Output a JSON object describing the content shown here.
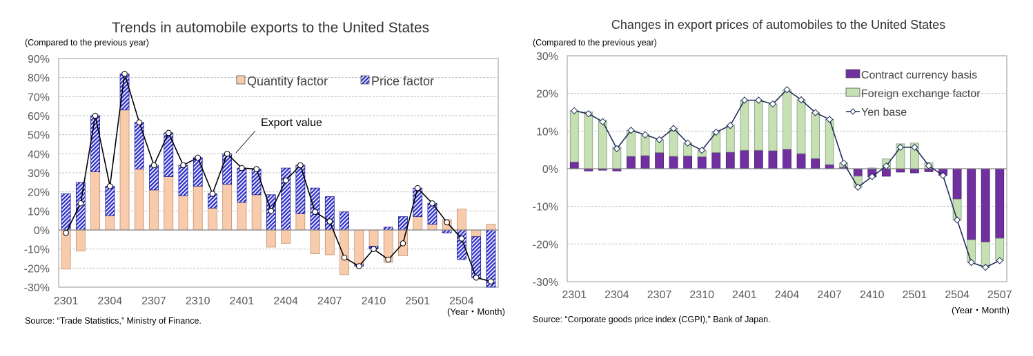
{
  "chart_data": [
    {
      "type": "bar",
      "stacked": true,
      "title": "Trends in automobile exports to the United States",
      "ylabel": "(Compared to the previous year)",
      "xlabel": "(Year・Month)",
      "source": "Source: “Trade Statistics,” Ministry of Finance.",
      "ylim": [
        -30,
        90
      ],
      "yticks": [
        "90%",
        "80%",
        "70%",
        "60%",
        "50%",
        "40%",
        "30%",
        "20%",
        "10%",
        "0%",
        "-10%",
        "-20%",
        "-30%"
      ],
      "xtick_labels": [
        "2301",
        "2304",
        "2307",
        "2310",
        "2401",
        "2404",
        "2407",
        "2410",
        "2501",
        "2504"
      ],
      "grid": true,
      "legend_placement": "top-right",
      "categories": [
        "2301",
        "2302",
        "2303",
        "2304",
        "2305",
        "2306",
        "2307",
        "2308",
        "2309",
        "2310",
        "2311",
        "2312",
        "2401",
        "2402",
        "2403",
        "2404",
        "2405",
        "2406",
        "2407",
        "2408",
        "2409",
        "2410",
        "2411",
        "2412",
        "2501",
        "2502",
        "2503",
        "2504",
        "2505",
        "2506"
      ],
      "series": [
        {
          "name": "Quantity factor",
          "kind": "bar",
          "color": "#f8cbad",
          "values": [
            -20.5,
            -11,
            30.5,
            7.5,
            63,
            32,
            21,
            28,
            18,
            23,
            11.5,
            24,
            14.5,
            18.5,
            -9,
            -7,
            8.5,
            -12.5,
            -13,
            -23.5,
            -18,
            -8.5,
            -17,
            -13.5,
            7,
            3,
            5.5,
            11,
            -3.5,
            3
          ]
        },
        {
          "name": "Price factor",
          "kind": "bar",
          "color": "#3333cc",
          "pattern": "hatched",
          "values": [
            19,
            25,
            29.5,
            15.5,
            19,
            24.5,
            13,
            23,
            16,
            15,
            7.5,
            16,
            18,
            13.5,
            18.5,
            32.5,
            25.5,
            22,
            17.5,
            9.5,
            -1,
            -1.5,
            1.5,
            7,
            15,
            11,
            -1.5,
            -15.5,
            -21.5,
            -30
          ]
        },
        {
          "name": "Export value",
          "kind": "line",
          "color": "#000000",
          "values": [
            -1.5,
            14,
            60,
            23,
            82,
            56.5,
            34,
            51,
            34,
            38,
            19,
            40,
            32.5,
            32,
            10,
            26,
            34,
            9.5,
            4.5,
            -14.5,
            -19,
            -10,
            -15.5,
            -7,
            22,
            14,
            4,
            -4.5,
            -25,
            -27
          ]
        }
      ]
    },
    {
      "type": "bar",
      "stacked": true,
      "title": "Changes in export prices of automobiles to the United States",
      "ylabel": "(Compared to the previous year)",
      "xlabel": "(Year・Month)",
      "source": "Source: “Corporate goods price index (CGPI),” Bank of Japan.",
      "ylim": [
        -30,
        30
      ],
      "yticks": [
        "30%",
        "20%",
        "10%",
        "0%",
        "-10%",
        "-20%",
        "-30%"
      ],
      "xtick_labels": [
        "2301",
        "2304",
        "2307",
        "2310",
        "2401",
        "2404",
        "2407",
        "2410",
        "2501",
        "2504",
        "2507"
      ],
      "grid": true,
      "legend_placement": "top-right",
      "categories": [
        "2301",
        "2302",
        "2303",
        "2304",
        "2305",
        "2306",
        "2307",
        "2308",
        "2309",
        "2310",
        "2311",
        "2312",
        "2401",
        "2402",
        "2403",
        "2404",
        "2405",
        "2406",
        "2407",
        "2408",
        "2409",
        "2410",
        "2411",
        "2412",
        "2501",
        "2502",
        "2503",
        "2504",
        "2505",
        "2506",
        "2507"
      ],
      "series": [
        {
          "name": "Contract currency basis",
          "kind": "bar",
          "color": "#7030a0",
          "values": [
            1.8,
            -0.6,
            -0.4,
            -0.6,
            3.3,
            3.5,
            4.3,
            3.3,
            3.4,
            3.2,
            4.3,
            4.4,
            4.9,
            4.9,
            4.8,
            5.2,
            4.0,
            2.7,
            1.1,
            0.4,
            -2.0,
            -2.2,
            -2.0,
            -0.9,
            -1.1,
            -0.8,
            -1.8,
            -8.1,
            -18.9,
            -19.5,
            -18.5
          ]
        },
        {
          "name": "Foreign exchange factor",
          "kind": "bar",
          "color": "#c6e0b4",
          "values": [
            13.6,
            15.1,
            12.9,
            5.8,
            6.9,
            5.5,
            3.4,
            7.4,
            3.4,
            1.7,
            5.5,
            7.1,
            13.3,
            13.3,
            12.4,
            15.8,
            14.3,
            12.2,
            12.0,
            1.1,
            -2.9,
            0.2,
            2.6,
            6.6,
            6.8,
            1.6,
            0,
            -5.5,
            -6.0,
            -6.7,
            -5.9
          ]
        },
        {
          "name": "Yen base",
          "kind": "line",
          "color": "#1f2d5a",
          "values": [
            15.4,
            14.6,
            12.5,
            5.3,
            10.2,
            9.0,
            7.7,
            10.7,
            6.8,
            4.9,
            9.7,
            11.5,
            18.2,
            18.2,
            17.2,
            21.0,
            18.3,
            14.9,
            13.1,
            1.5,
            -4.9,
            -2.1,
            0.7,
            5.7,
            5.7,
            0.8,
            -1.8,
            -13.6,
            -24.9,
            -26.2,
            -24.4
          ]
        }
      ]
    }
  ],
  "annotations": {
    "export_value_label": "Export value"
  }
}
